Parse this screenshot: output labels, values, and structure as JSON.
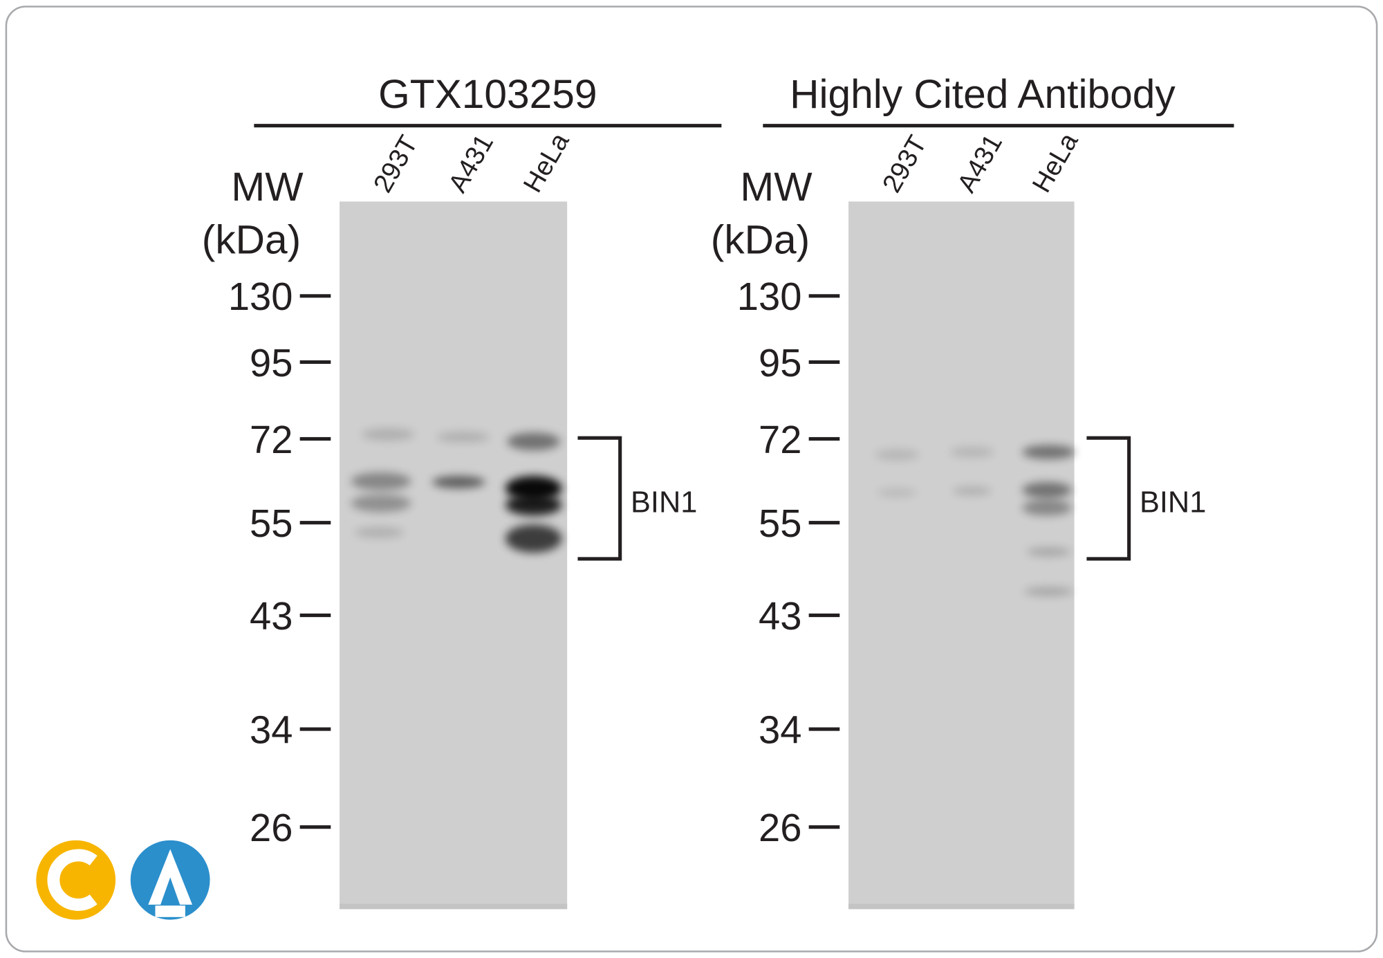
{
  "panels": [
    {
      "title": "GTX103259",
      "lanes": [
        "293T",
        "A431",
        "HeLa"
      ],
      "mw_label": [
        "MW",
        "(kDa)"
      ],
      "markers": [
        130,
        95,
        72,
        55,
        43,
        34,
        26
      ],
      "band_label": "BIN1"
    },
    {
      "title": "Highly Cited Antibody",
      "lanes": [
        "293T",
        "A431",
        "HeLa"
      ],
      "mw_label": [
        "MW",
        "(kDa)"
      ],
      "markers": [
        130,
        95,
        72,
        55,
        43,
        34,
        26
      ],
      "band_label": "BIN1"
    }
  ]
}
